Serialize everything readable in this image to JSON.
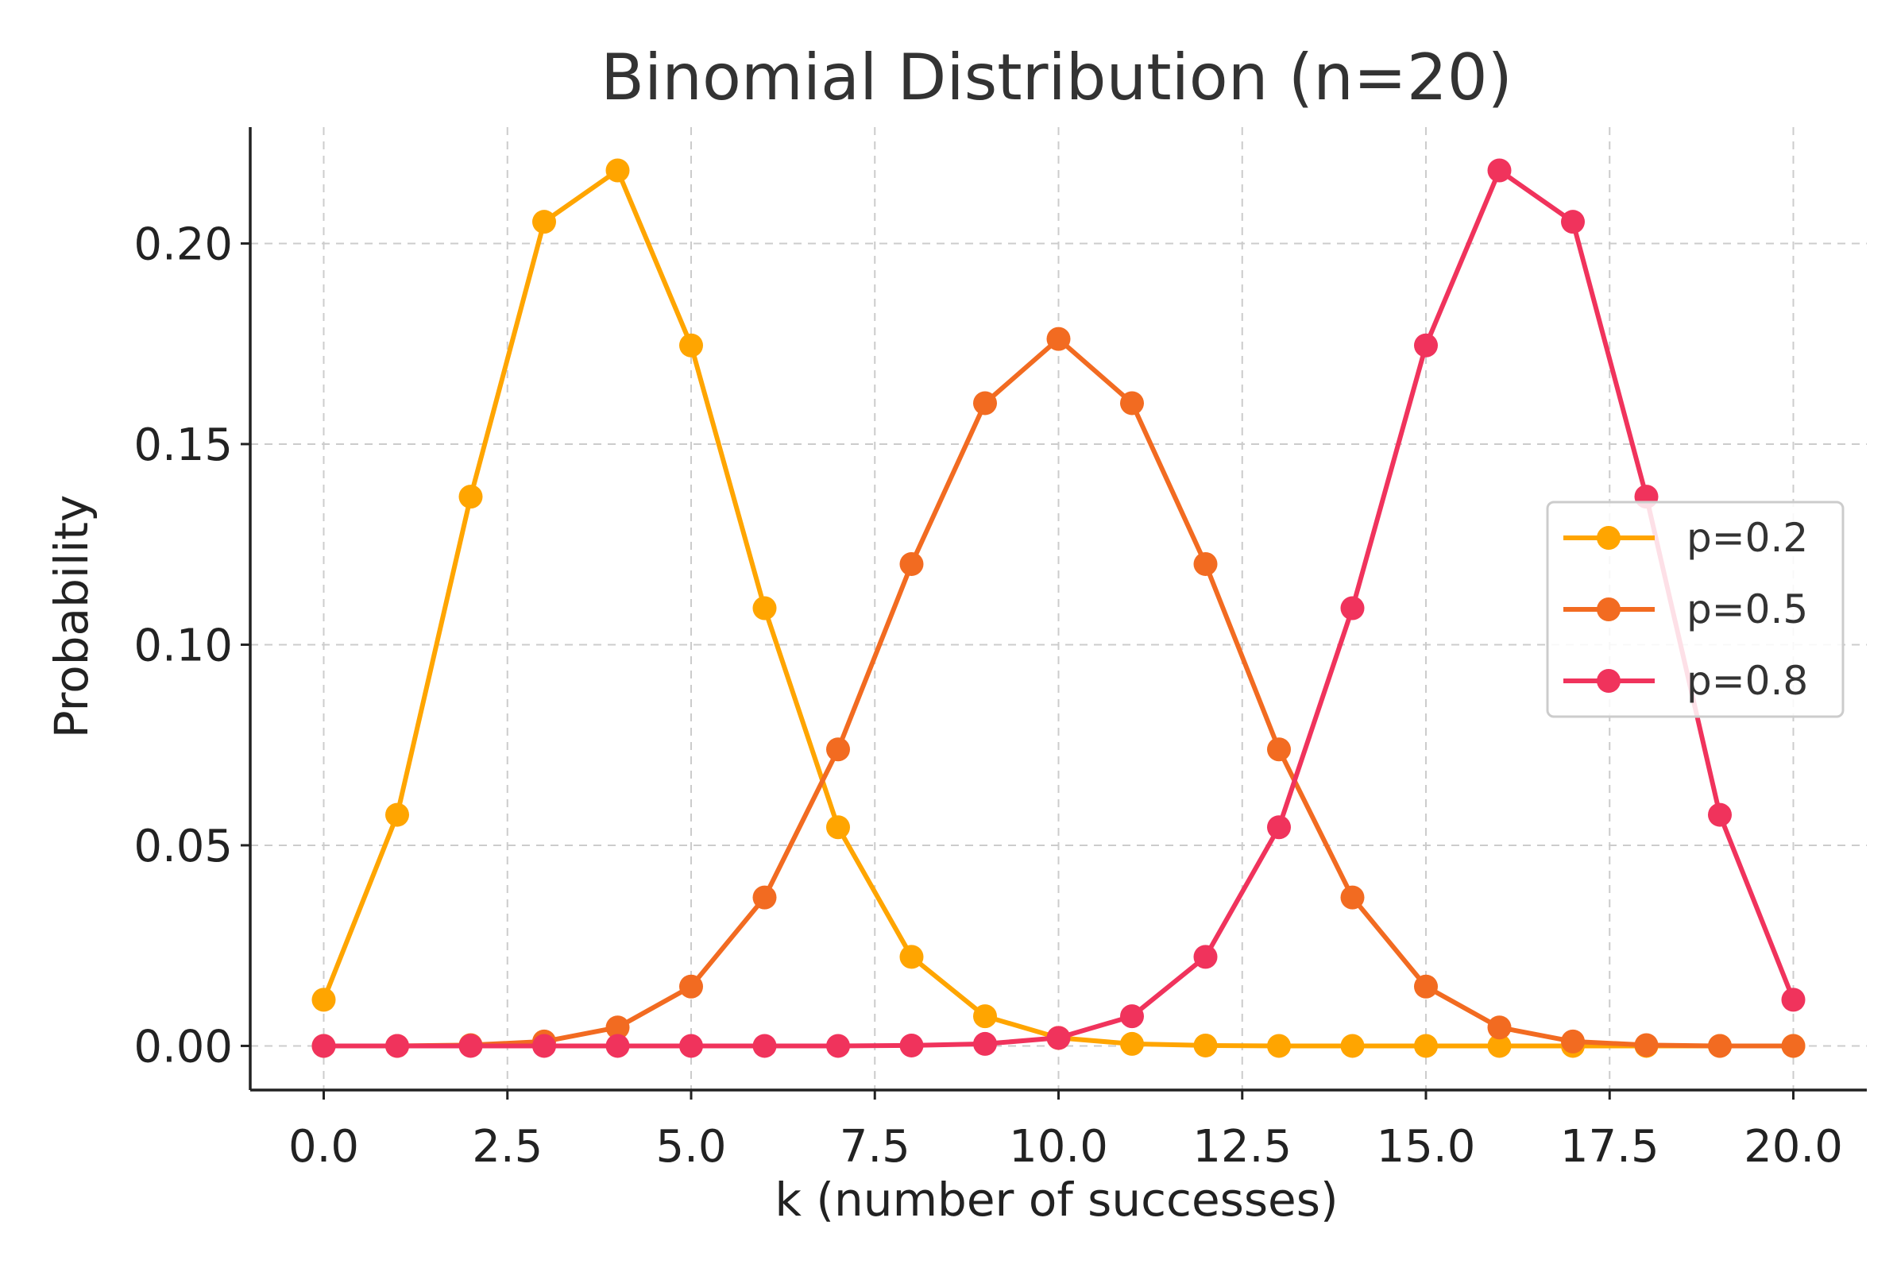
{
  "chart_data": {
    "type": "line",
    "title": "Binomial Distribution (n=20)",
    "xlabel": "k (number of successes)",
    "ylabel": "Probability",
    "xlim": [
      -1,
      21
    ],
    "ylim": [
      -0.011,
      0.229
    ],
    "xticks": [
      0,
      2.5,
      5,
      7.5,
      10,
      12.5,
      15,
      17.5,
      20
    ],
    "xtick_labels": [
      "0.0",
      "2.5",
      "5.0",
      "7.5",
      "10.0",
      "12.5",
      "15.0",
      "17.5",
      "20.0"
    ],
    "yticks": [
      0,
      0.05,
      0.1,
      0.15,
      0.2
    ],
    "ytick_labels": [
      "0.00",
      "0.05",
      "0.10",
      "0.15",
      "0.20"
    ],
    "grid": true,
    "legend_position": "right",
    "x": [
      0,
      1,
      2,
      3,
      4,
      5,
      6,
      7,
      8,
      9,
      10,
      11,
      12,
      13,
      14,
      15,
      16,
      17,
      18,
      19,
      20
    ],
    "series": [
      {
        "name": "p=0.2",
        "color": "#FFA500",
        "values": [
          0.0115,
          0.0576,
          0.1369,
          0.2054,
          0.2182,
          0.1746,
          0.1091,
          0.0545,
          0.0222,
          0.0074,
          0.002,
          0.0005,
          0.0001,
          0.0,
          0.0,
          0.0,
          0.0,
          0.0,
          0.0,
          0.0,
          0.0
        ]
      },
      {
        "name": "p=0.5",
        "color": "#F26B21",
        "values": [
          0.0,
          0.0,
          0.0002,
          0.0011,
          0.0046,
          0.0148,
          0.037,
          0.0739,
          0.1201,
          0.1602,
          0.1762,
          0.1602,
          0.1201,
          0.0739,
          0.037,
          0.0148,
          0.0046,
          0.0011,
          0.0002,
          0.0,
          0.0
        ]
      },
      {
        "name": "p=0.8",
        "color": "#F0335C",
        "values": [
          0.0,
          0.0,
          0.0,
          0.0,
          0.0,
          0.0,
          0.0,
          0.0,
          0.0001,
          0.0005,
          0.002,
          0.0074,
          0.0222,
          0.0545,
          0.1091,
          0.1746,
          0.2182,
          0.2054,
          0.1369,
          0.0576,
          0.0115
        ]
      }
    ]
  }
}
